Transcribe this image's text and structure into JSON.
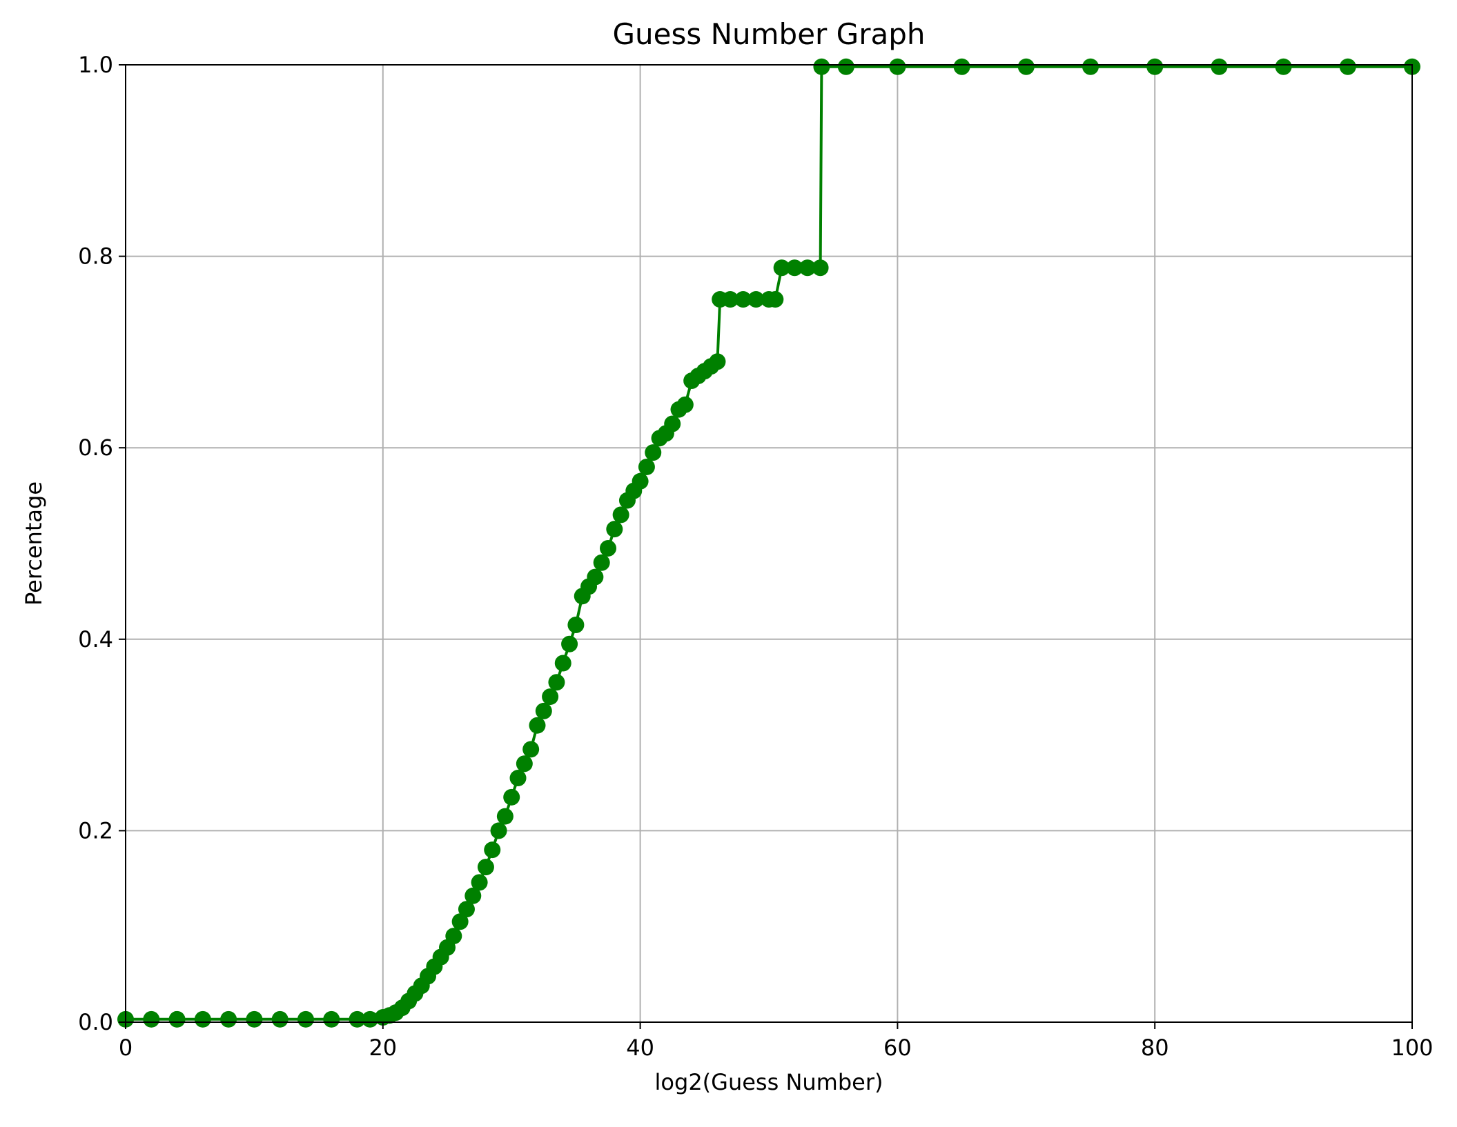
{
  "chart_data": {
    "type": "line",
    "title": "Guess Number Graph",
    "xlabel": "log2(Guess Number)",
    "ylabel": "Percentage",
    "xlim": [
      0,
      100
    ],
    "ylim": [
      0.0,
      1.0
    ],
    "xticks": [
      0,
      20,
      40,
      60,
      80,
      100
    ],
    "xtick_labels": [
      "0",
      "20",
      "40",
      "60",
      "80",
      "100"
    ],
    "yticks": [
      0.0,
      0.2,
      0.4,
      0.6,
      0.8,
      1.0
    ],
    "ytick_labels": [
      "0.0",
      "0.2",
      "0.4",
      "0.6",
      "0.8",
      "1.0"
    ],
    "grid": true,
    "colors": {
      "series": "#008000",
      "grid": "#b0b0b0",
      "axes": "#000000"
    },
    "series": [
      {
        "x": [
          0,
          2,
          4,
          6,
          8,
          10,
          12,
          14,
          16,
          18,
          19,
          20,
          20.5,
          21,
          21.5,
          22,
          22.5,
          23,
          23.5,
          24,
          24.5,
          25,
          25.5,
          26,
          26.5,
          27,
          27.5,
          28,
          28.5,
          29,
          29.5,
          30,
          30.5,
          31,
          31.5,
          32,
          32.5,
          33,
          33.5,
          34,
          34.5,
          35,
          35.5,
          36,
          36.5,
          37,
          37.5,
          38,
          38.5,
          39,
          39.5,
          40,
          40.5,
          41,
          41.5,
          42,
          42.5,
          43,
          43.5,
          44,
          44.5,
          45,
          45.5,
          46,
          46.2,
          47,
          48,
          49,
          50,
          50.5,
          51,
          52,
          53,
          54,
          54.1,
          56,
          60,
          65,
          70,
          75,
          80,
          85,
          90,
          95,
          100
        ],
        "y": [
          0.003,
          0.003,
          0.003,
          0.003,
          0.003,
          0.003,
          0.003,
          0.003,
          0.003,
          0.003,
          0.003,
          0.005,
          0.007,
          0.01,
          0.015,
          0.022,
          0.03,
          0.038,
          0.048,
          0.058,
          0.068,
          0.078,
          0.09,
          0.105,
          0.118,
          0.132,
          0.146,
          0.162,
          0.18,
          0.2,
          0.215,
          0.235,
          0.255,
          0.27,
          0.285,
          0.31,
          0.325,
          0.34,
          0.355,
          0.375,
          0.395,
          0.415,
          0.445,
          0.455,
          0.465,
          0.48,
          0.495,
          0.515,
          0.53,
          0.545,
          0.555,
          0.565,
          0.58,
          0.595,
          0.61,
          0.615,
          0.625,
          0.64,
          0.645,
          0.67,
          0.675,
          0.68,
          0.685,
          0.69,
          0.755,
          0.755,
          0.755,
          0.755,
          0.755,
          0.755,
          0.788,
          0.788,
          0.788,
          0.788,
          0.998,
          0.998,
          0.998,
          0.998,
          0.998,
          0.998,
          0.998,
          0.998,
          0.998,
          0.998,
          0.998
        ]
      }
    ]
  }
}
